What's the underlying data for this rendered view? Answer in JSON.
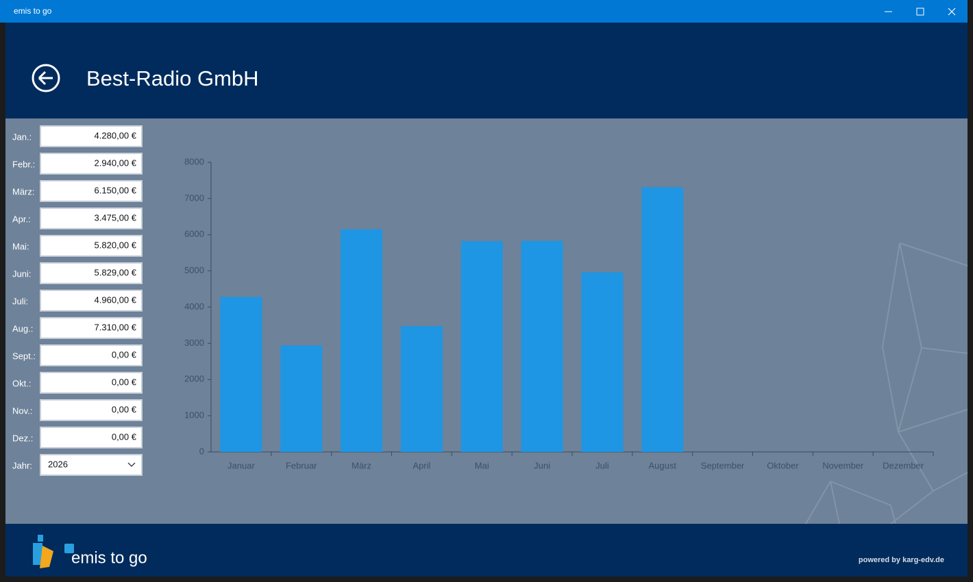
{
  "window": {
    "title": "emis to go"
  },
  "header": {
    "title": "Best-Radio GmbH"
  },
  "form": {
    "fields": [
      {
        "label": "Jan.:",
        "value": "4.280,00 €"
      },
      {
        "label": "Febr.:",
        "value": "2.940,00 €"
      },
      {
        "label": "März:",
        "value": "6.150,00 €"
      },
      {
        "label": "Apr.:",
        "value": "3.475,00 €"
      },
      {
        "label": "Mai:",
        "value": "5.820,00 €"
      },
      {
        "label": "Juni:",
        "value": "5.829,00 €"
      },
      {
        "label": "Juli:",
        "value": "4.960,00 €"
      },
      {
        "label": "Aug.:",
        "value": "7.310,00 €"
      },
      {
        "label": "Sept.:",
        "value": "0,00 €"
      },
      {
        "label": "Okt.:",
        "value": "0,00 €"
      },
      {
        "label": "Nov.:",
        "value": "0,00 €"
      },
      {
        "label": "Dez.:",
        "value": "0,00 €"
      }
    ],
    "year": {
      "label": "Jahr:",
      "value": "2026"
    }
  },
  "chart_data": {
    "type": "bar",
    "categories": [
      "Januar",
      "Februar",
      "März",
      "April",
      "Mai",
      "Juni",
      "Juli",
      "August",
      "September",
      "Oktober",
      "November",
      "Dezember"
    ],
    "values": [
      4280,
      2940,
      6150,
      3475,
      5820,
      5829,
      4960,
      7310,
      0,
      0,
      0,
      0
    ],
    "color": "#1e96e3",
    "ylim": [
      0,
      8000
    ],
    "yticks": [
      0,
      1000,
      2000,
      3000,
      4000,
      5000,
      6000,
      7000,
      8000
    ]
  },
  "footer": {
    "brand": "emis to go",
    "powered_by": "powered by karg-edv.de"
  }
}
